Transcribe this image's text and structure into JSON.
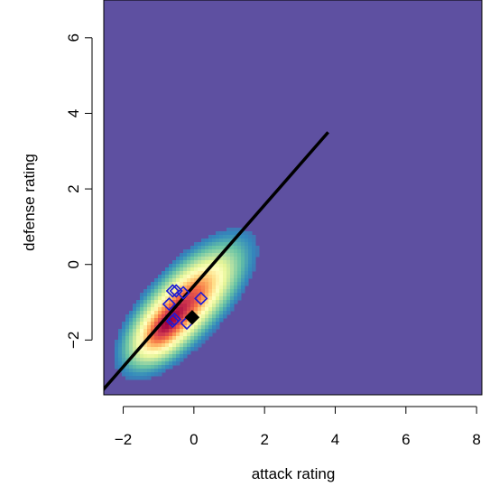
{
  "chart_data": {
    "type": "heatmap",
    "title": "",
    "xlabel": "attack rating",
    "ylabel": "defense rating",
    "xlim": [
      -2.55,
      8.15
    ],
    "ylim": [
      -3.45,
      7.0
    ],
    "x_ticks": [
      -2,
      0,
      2,
      4,
      6,
      8
    ],
    "y_ticks": [
      -2,
      0,
      2,
      4,
      6
    ],
    "x_tick_labels": [
      "−2",
      "0",
      "2",
      "4",
      "6",
      "8"
    ],
    "y_tick_labels": [
      "−2",
      "0",
      "2",
      "4",
      "6"
    ],
    "grid": false,
    "legend": false,
    "colors": {
      "background": "#5e50a1",
      "palette": [
        "#5e4fa2",
        "#3288bd",
        "#66c2a5",
        "#abdda4",
        "#e6f598",
        "#ffffbf",
        "#fee08b",
        "#fdae61",
        "#f46d43",
        "#d53e4f",
        "#9e0142"
      ],
      "line": "#000000",
      "open_markers": "#1b1bd6",
      "filled_marker": "#000000"
    },
    "density": {
      "center": [
        -0.2,
        -1.0
      ],
      "direction": [
        0.72,
        0.694
      ],
      "sd_major": 1.0,
      "sd_minor": 0.42,
      "secondary_center": [
        -0.95,
        -1.8
      ],
      "secondary_weight": 0.55
    },
    "regression_line": {
      "x": [
        -2.6,
        3.8
      ],
      "y": [
        -3.35,
        3.5
      ]
    },
    "open_diamonds": [
      {
        "x": -0.6,
        "y": -0.7
      },
      {
        "x": -0.5,
        "y": -0.7
      },
      {
        "x": -0.3,
        "y": -0.75
      },
      {
        "x": 0.2,
        "y": -0.9
      },
      {
        "x": -0.7,
        "y": -1.05
      },
      {
        "x": -0.55,
        "y": -1.45
      },
      {
        "x": -0.6,
        "y": -1.5
      },
      {
        "x": -0.2,
        "y": -1.55
      }
    ],
    "filled_diamonds": [
      {
        "x": -0.05,
        "y": -1.4
      }
    ]
  }
}
